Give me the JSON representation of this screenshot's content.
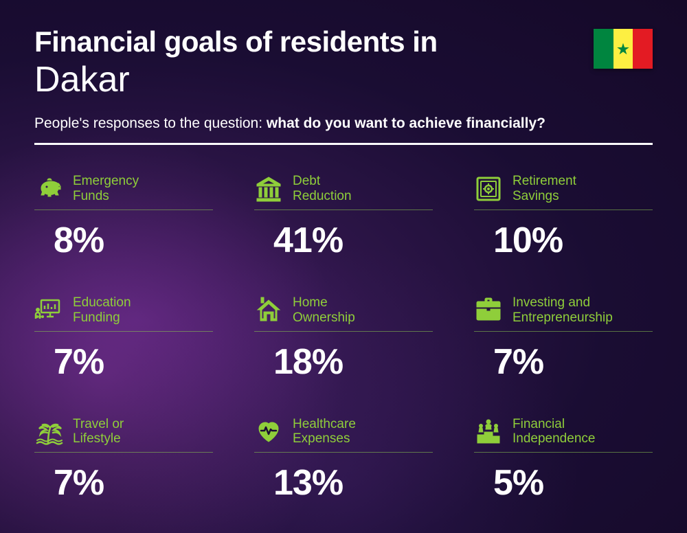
{
  "header": {
    "title_line1": "Financial goals of residents in",
    "title_line2": "Dakar",
    "subtitle_prefix": "People's responses to the question: ",
    "subtitle_bold": "what do you want to achieve financially?"
  },
  "flag": {
    "stripe_colors": [
      "#00853f",
      "#fdef42",
      "#e31b23"
    ],
    "star_color": "#00853f"
  },
  "styling": {
    "accent_color": "#8fce3a",
    "text_color": "#ffffff",
    "title_fontsize": 42,
    "city_fontsize": 52,
    "subtitle_fontsize": 21,
    "label_fontsize": 19,
    "value_fontsize": 52,
    "divider_color": "#ffffff",
    "item_underline_color": "rgba(140,200,80,0.55)",
    "background_gradient": [
      "#4a1f6b",
      "#2d1548",
      "#1a0d33",
      "#150928"
    ]
  },
  "items": [
    {
      "icon": "piggy-bank",
      "label_l1": "Emergency",
      "label_l2": "Funds",
      "value": "8%"
    },
    {
      "icon": "bank",
      "label_l1": "Debt",
      "label_l2": "Reduction",
      "value": "41%"
    },
    {
      "icon": "safe",
      "label_l1": "Retirement",
      "label_l2": "Savings",
      "value": "10%"
    },
    {
      "icon": "presentation",
      "label_l1": "Education",
      "label_l2": "Funding",
      "value": "7%"
    },
    {
      "icon": "house",
      "label_l1": "Home",
      "label_l2": "Ownership",
      "value": "18%"
    },
    {
      "icon": "briefcase",
      "label_l1": "Investing and",
      "label_l2": "Entrepreneurship",
      "value": "7%"
    },
    {
      "icon": "palm",
      "label_l1": "Travel or",
      "label_l2": "Lifestyle",
      "value": "7%"
    },
    {
      "icon": "heart-pulse",
      "label_l1": "Healthcare",
      "label_l2": "Expenses",
      "value": "13%"
    },
    {
      "icon": "podium",
      "label_l1": "Financial",
      "label_l2": "Independence",
      "value": "5%"
    }
  ]
}
